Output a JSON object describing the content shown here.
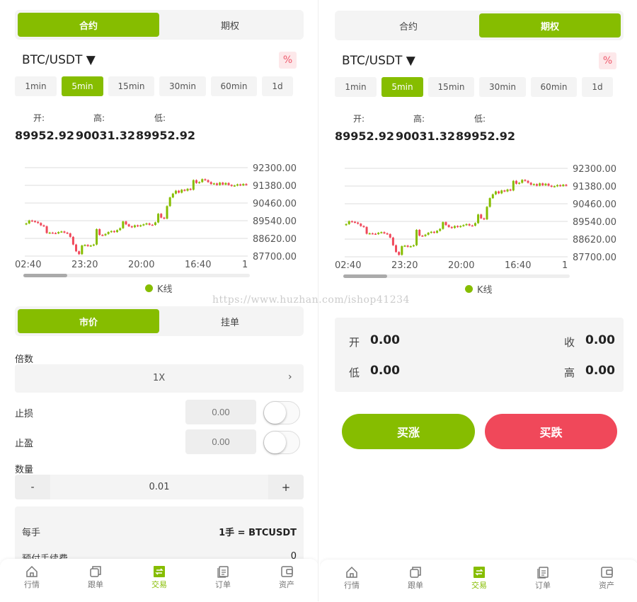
{
  "colors": {
    "accent": "#86bd00",
    "up": "#86bd00",
    "down": "#f0485a"
  },
  "mode_tabs": [
    "合约",
    "期权"
  ],
  "pair": "BTC/USDT ▼",
  "pct_label": "%",
  "intervals": [
    "1min",
    "5min",
    "15min",
    "30min",
    "60min",
    "1d"
  ],
  "selected_interval": "5min",
  "ohlc_labels": {
    "open": "开:",
    "high": "高:",
    "low": "低:"
  },
  "ohlc_values": {
    "open": "89952.92",
    "high": "90031.32",
    "low": "89952.92"
  },
  "chart_data": {
    "type": "candlestick",
    "yticks": [
      "92300.00",
      "91380.00",
      "90460.00",
      "89540.00",
      "88620.00",
      "87700.00"
    ],
    "ylim": [
      87700,
      92300
    ],
    "xticks": [
      "02:40",
      "23:20",
      "20:00",
      "16:40",
      "1"
    ],
    "legend": "K线",
    "grid": true,
    "closes": [
      89400,
      89550,
      89520,
      89480,
      89420,
      89300,
      89250,
      88900,
      88920,
      88900,
      88880,
      88950,
      88980,
      88920,
      88880,
      88700,
      88300,
      87950,
      87800,
      88250,
      88280,
      88220,
      88250,
      88300,
      89100,
      88800,
      88780,
      88850,
      88950,
      89000,
      88950,
      89050,
      89150,
      89500,
      89350,
      89250,
      89200,
      89300,
      89250,
      89300,
      89350,
      89400,
      89330,
      89320,
      89450,
      89900,
      89700,
      89650,
      90300,
      90750,
      90950,
      91100,
      91000,
      91150,
      91100,
      91200,
      91150,
      91650,
      91500,
      91550,
      91700,
      91650,
      91550,
      91450,
      91480,
      91400,
      91520,
      91420,
      91500,
      91400,
      91350,
      91370,
      91430,
      91380,
      91450,
      91400
    ]
  },
  "market_tabs": [
    "市价",
    "挂单"
  ],
  "form": {
    "multiplier_label": "倍数",
    "multiplier_value": "1X",
    "chevron": "›",
    "stop_loss_label": "止损",
    "stop_loss_placeholder": "0.00",
    "take_profit_label": "止盈",
    "take_profit_placeholder": "0.00",
    "qty_label": "数量",
    "qty_minus": "-",
    "qty_value": "0.01",
    "qty_plus": "+"
  },
  "info": [
    {
      "label": "每手",
      "value": "1手 = BTCUSDT"
    },
    {
      "label": "预付手续费",
      "value": "0"
    }
  ],
  "option_box": {
    "open_label": "开",
    "open": "0.00",
    "close_label": "收",
    "close": "0.00",
    "low_label": "低",
    "low": "0.00",
    "high_label": "高",
    "high": "0.00"
  },
  "buy_up": "买涨",
  "buy_down": "买跌",
  "nav": [
    {
      "label": "行情",
      "icon": "home-icon"
    },
    {
      "label": "跟单",
      "icon": "copy-icon"
    },
    {
      "label": "交易",
      "icon": "exchange-icon"
    },
    {
      "label": "订单",
      "icon": "order-icon"
    },
    {
      "label": "资产",
      "icon": "wallet-icon"
    }
  ],
  "nav_active": 2,
  "watermark": "https://www.huzhan.com/ishop41234"
}
